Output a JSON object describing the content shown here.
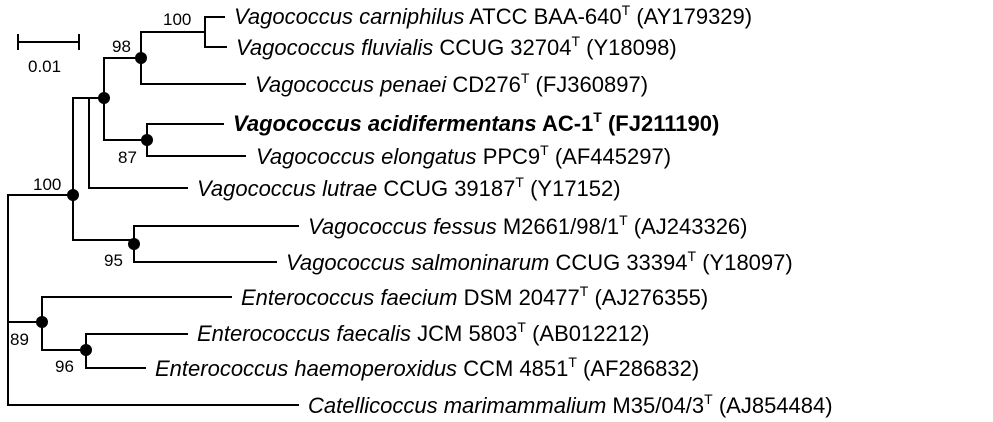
{
  "scale_bar": {
    "label": "0.01"
  },
  "taxa": [
    {
      "id": "t1",
      "species": "Vagococcus carniphilus",
      "strain": "ATCC BAA-640",
      "type_mark": "T",
      "accession": "(AY179329)",
      "bold": false
    },
    {
      "id": "t2",
      "species": "Vagococcus fluvialis",
      "strain": "CCUG 32704",
      "type_mark": "T",
      "accession": "(Y18098)",
      "bold": false
    },
    {
      "id": "t3",
      "species": "Vagococcus penaei",
      "strain": "CD276",
      "type_mark": "T",
      "accession": "(FJ360897)",
      "bold": false
    },
    {
      "id": "t4",
      "species": "Vagococcus acidifermentans",
      "strain": "AC-1",
      "type_mark": "T",
      "accession": "(FJ211190)",
      "bold": true
    },
    {
      "id": "t5",
      "species": "Vagococcus elongatus",
      "strain": "PPC9",
      "type_mark": "T",
      "accession": "(AF445297)",
      "bold": false
    },
    {
      "id": "t6",
      "species": "Vagococcus lutrae",
      "strain": "CCUG 39187",
      "type_mark": "T",
      "accession": "(Y17152)",
      "bold": false
    },
    {
      "id": "t7",
      "species": "Vagococcus fessus",
      "strain": "M2661/98/1",
      "type_mark": "T",
      "accession": "(AJ243326)",
      "bold": false
    },
    {
      "id": "t8",
      "species": "Vagococcus salmoninarum",
      "strain": "CCUG 33394",
      "type_mark": "T",
      "accession": "(Y18097)",
      "bold": false
    },
    {
      "id": "t9",
      "species": "Enterococcus faecium",
      "strain": "DSM 20477",
      "type_mark": "T",
      "accession": "(AJ276355)",
      "bold": false
    },
    {
      "id": "t10",
      "species": "Enterococcus faecalis",
      "strain": "JCM 5803",
      "type_mark": "T",
      "accession": "(AB012212)",
      "bold": false
    },
    {
      "id": "t11",
      "species": "Enterococcus haemoperoxidus",
      "strain": "CCM 4851",
      "type_mark": "T",
      "accession": "(AF286832)",
      "bold": false
    },
    {
      "id": "t12",
      "species": "Catellicoccus marimammalium",
      "strain": "M35/04/3",
      "type_mark": "T",
      "accession": "(AJ854484)",
      "bold": false
    }
  ],
  "bootstrap_values": {
    "carniphilus_fluvialis": "100",
    "vagococcus_core_clade": "98",
    "acidifermentans_elongatus": "87",
    "vagococcus_genus": "100",
    "fessus_salmoninarum": "95",
    "enterococcus_genus": "89",
    "faecalis_haemoperoxidus": "96"
  }
}
